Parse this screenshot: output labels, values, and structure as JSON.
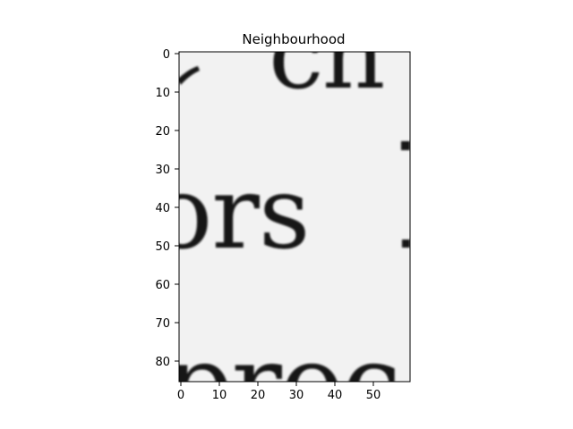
{
  "title": "Neighbourhood",
  "image": {
    "description_kind": "grayscale-crop-of-printed-text",
    "background_color": "#f2f2f2",
    "ink_color": "#161616",
    "visible_glyphs": {
      "top_row": "cn",
      "middle_row": "ors",
      "bottom_row": "proc"
    }
  },
  "axes": {
    "x_ticks": [
      "0",
      "10",
      "20",
      "30",
      "40",
      "50"
    ],
    "y_ticks": [
      "0",
      "10",
      "20",
      "30",
      "40",
      "50",
      "60",
      "70",
      "80"
    ]
  },
  "colors": {
    "frame": "#000000",
    "page_background": "#ffffff"
  }
}
